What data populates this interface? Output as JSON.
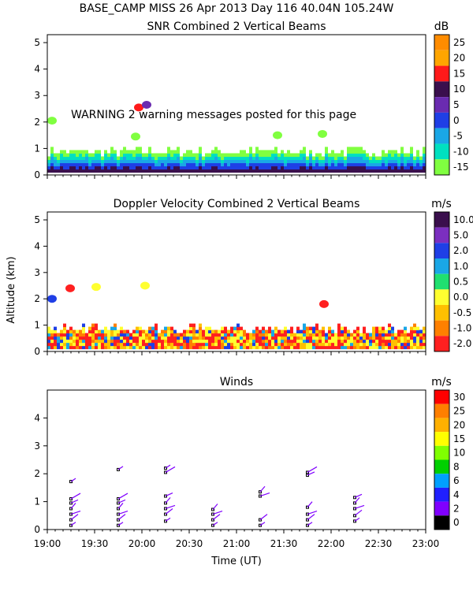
{
  "header": {
    "title": "BASE_CAMP MISS  26 Apr 2013 Day 116 40.04N 105.24W"
  },
  "warning": "WARNING  2 warning messages posted for this page",
  "shared_axes": {
    "ylabel": "Altitude (km)",
    "xlabel": "Time (UT)",
    "xticks": [
      "19:00",
      "19:30",
      "20:00",
      "20:30",
      "21:00",
      "21:30",
      "22:00",
      "22:30",
      "23:00"
    ]
  },
  "chart_data": [
    {
      "type": "heatmap",
      "id": "snr",
      "title": "SNR Combined 2 Vertical Beams",
      "unit": "dB",
      "ylim": [
        0,
        5.3
      ],
      "yticks": [
        0,
        1,
        2,
        3,
        4,
        5
      ],
      "colorbar": {
        "labels": [
          "25",
          "20",
          "15",
          "10",
          "5",
          "0",
          "-5",
          "-10",
          "-15"
        ],
        "colors": [
          "#ff8c00",
          "#ffa500",
          "#ff1a1a",
          "#3a0f4d",
          "#6a2bb0",
          "#1f3fe6",
          "#1aa7e6",
          "#00e0c0",
          "#80ff40"
        ]
      }
    },
    {
      "type": "heatmap",
      "id": "doppler",
      "title": "Doppler Velocity Combined 2 Vertical Beams",
      "unit": "m/s",
      "ylim": [
        0,
        5.3
      ],
      "yticks": [
        0,
        1,
        2,
        3,
        4,
        5
      ],
      "colorbar": {
        "labels": [
          "10.0",
          "5.0",
          "2.0",
          "1.0",
          "0.5",
          "0.0",
          "-0.5",
          "-1.0",
          "-2.0"
        ],
        "colors": [
          "#3a0f4d",
          "#7b2fc0",
          "#1f3fe6",
          "#1aa7e6",
          "#20e070",
          "#ffff30",
          "#ffc000",
          "#ff8000",
          "#ff2020"
        ]
      }
    },
    {
      "type": "scatter",
      "id": "winds",
      "title": "Winds",
      "unit": "m/s",
      "ylim": [
        0,
        5
      ],
      "yticks": [
        0,
        1,
        2,
        3,
        4
      ],
      "colorbar": {
        "labels": [
          "30",
          "25",
          "20",
          "15",
          "10",
          "8",
          "6",
          "4",
          "2",
          "0"
        ],
        "colors": [
          "#ff0000",
          "#ff7f00",
          "#ffb000",
          "#ffff00",
          "#80ff00",
          "#00d000",
          "#00a0ff",
          "#2020ff",
          "#8000ff",
          "#000000"
        ]
      },
      "profiles": [
        {
          "time": "19:15",
          "altitudes": [
            0.15,
            0.35,
            0.55,
            0.75,
            0.95,
            1.1,
            1.72
          ]
        },
        {
          "time": "19:45",
          "altitudes": [
            0.15,
            0.35,
            0.55,
            0.75,
            0.95,
            1.1,
            2.15
          ]
        },
        {
          "time": "20:15",
          "altitudes": [
            0.3,
            0.55,
            0.75,
            0.95,
            1.2,
            2.05,
            2.2
          ]
        },
        {
          "time": "20:45",
          "altitudes": [
            0.15,
            0.35,
            0.55,
            0.72
          ]
        },
        {
          "time": "21:15",
          "altitudes": [
            0.15,
            0.35,
            1.2,
            1.35
          ]
        },
        {
          "time": "21:45",
          "altitudes": [
            0.15,
            0.35,
            0.55,
            0.8,
            1.95,
            2.05
          ]
        },
        {
          "time": "22:15",
          "altitudes": [
            0.3,
            0.5,
            0.75,
            0.95,
            1.15
          ]
        }
      ]
    }
  ]
}
